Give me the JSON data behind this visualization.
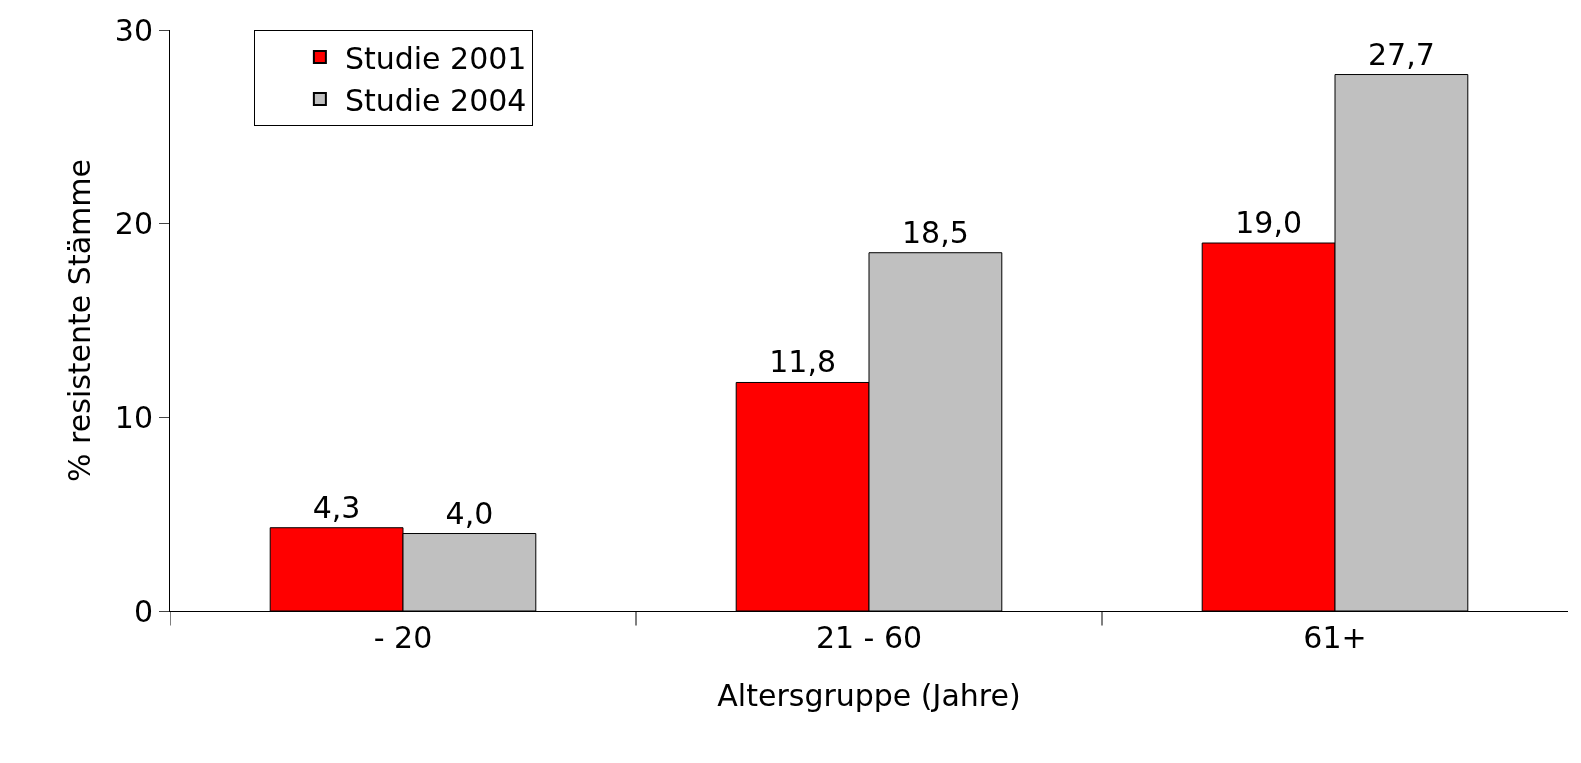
{
  "chart_data": {
    "type": "bar",
    "xlabel": "Altersgruppe (Jahre)",
    "ylabel": "% resistente Stämme",
    "categories": [
      "- 20",
      "21 - 60",
      "61+"
    ],
    "series": [
      {
        "name": "Studie 2001",
        "color": "#ff0000",
        "values": [
          4.3,
          11.8,
          19.0
        ],
        "value_labels": [
          "4,3",
          "11,8",
          "19,0"
        ]
      },
      {
        "name": "Studie 2004",
        "color": "#c0c0c0",
        "values": [
          4.0,
          18.5,
          27.7
        ],
        "value_labels": [
          "4,0",
          "18,5",
          "27,7"
        ]
      }
    ],
    "ylim": [
      0,
      30
    ],
    "yticks": [
      0,
      10,
      20,
      30
    ],
    "legend": "top left"
  }
}
